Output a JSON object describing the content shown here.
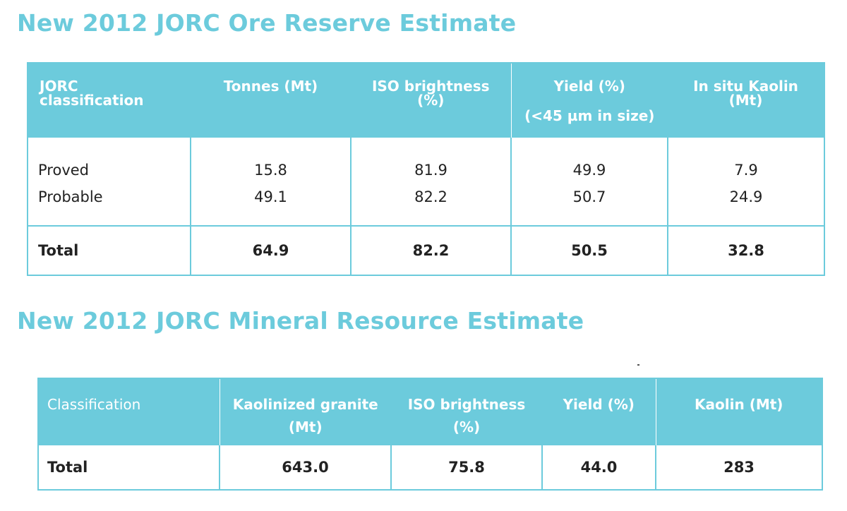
{
  "reserve": {
    "title": "New 2012 JORC Ore Reserve Estimate",
    "headers": {
      "classification": "JORC classification",
      "tonnes": "Tonnes (Mt)",
      "brightness": "ISO brightness (%)",
      "yield": "Yield (%)",
      "yield_sub": "(<45 µm in size)",
      "kaolin": "In situ Kaolin (Mt)"
    },
    "rows": [
      {
        "classification": "Proved",
        "tonnes": "15.8",
        "brightness": "81.9",
        "yield": "49.9",
        "kaolin": "7.9"
      },
      {
        "classification": "Probable",
        "tonnes": "49.1",
        "brightness": "82.2",
        "yield": "50.7",
        "kaolin": "24.9"
      }
    ],
    "total": {
      "classification": "Total",
      "tonnes": "64.9",
      "brightness": "82.2",
      "yield": "50.5",
      "kaolin": "32.8"
    }
  },
  "resource": {
    "title": "New 2012 JORC Mineral Resource Estimate",
    "headers": {
      "classification": "Classification",
      "granite": "Kaolinized granite (Mt)",
      "brightness": "ISO brightness (%)",
      "yield": "Yield (%)",
      "kaolin": "Kaolin (Mt)"
    },
    "total": {
      "classification": "Total",
      "granite": "643.0",
      "brightness": "75.8",
      "yield": "44.0",
      "kaolin": "283"
    }
  },
  "colors": {
    "accent": "#6ccbdc",
    "text": "#222222"
  }
}
